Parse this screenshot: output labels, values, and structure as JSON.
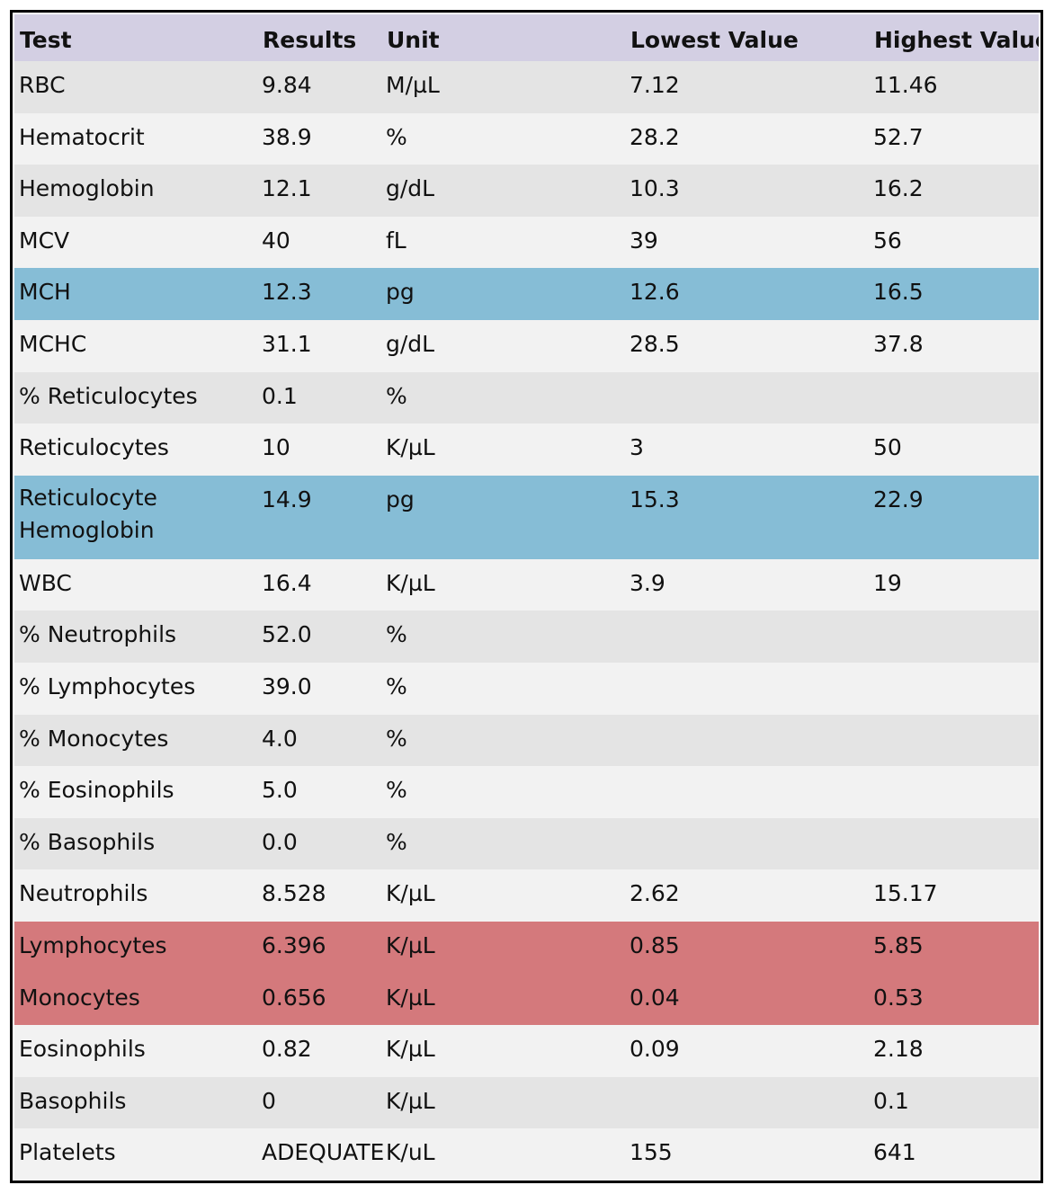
{
  "table": {
    "headers": [
      "Test",
      "Results",
      "Unit",
      "Lowest Value",
      "Highest Value"
    ],
    "colors": {
      "header": "#d3cfe3",
      "row_light": "#f2f2f2",
      "row_dark": "#e4e4e4",
      "highlight_blue": "#86bdd6",
      "highlight_red": "#d4797c"
    },
    "rows": [
      {
        "test": "RBC",
        "result": "9.84",
        "unit": "M/µL",
        "low": "7.12",
        "high": "11.46"
      },
      {
        "test": "Hematocrit",
        "result": "38.9",
        "unit": "%",
        "low": "28.2",
        "high": "52.7"
      },
      {
        "test": "Hemoglobin",
        "result": "12.1",
        "unit": "g/dL",
        "low": "10.3",
        "high": "16.2"
      },
      {
        "test": "MCV",
        "result": "40",
        "unit": "fL",
        "low": "39",
        "high": "56"
      },
      {
        "test": "MCH",
        "result": "12.3",
        "unit": "pg",
        "low": "12.6",
        "high": "16.5"
      },
      {
        "test": "MCHC",
        "result": "31.1",
        "unit": "g/dL",
        "low": "28.5",
        "high": "37.8"
      },
      {
        "test": "% Reticulocytes",
        "result": "0.1",
        "unit": "%",
        "low": "",
        "high": ""
      },
      {
        "test": "Reticulocytes",
        "result": "10",
        "unit": "K/µL",
        "low": "3",
        "high": "50"
      },
      {
        "test": "Reticulocyte Hemoglobin",
        "result": "14.9",
        "unit": "pg",
        "low": "15.3",
        "high": "22.9"
      },
      {
        "test": "WBC",
        "result": "16.4",
        "unit": "K/µL",
        "low": "3.9",
        "high": "19"
      },
      {
        "test": "% Neutrophils",
        "result": "52.0",
        "unit": "%",
        "low": "",
        "high": ""
      },
      {
        "test": "% Lymphocytes",
        "result": "39.0",
        "unit": "%",
        "low": "",
        "high": ""
      },
      {
        "test": "% Monocytes",
        "result": "4.0",
        "unit": "%",
        "low": "",
        "high": ""
      },
      {
        "test": "% Eosinophils",
        "result": "5.0",
        "unit": "%",
        "low": "",
        "high": ""
      },
      {
        "test": "% Basophils",
        "result": "0.0",
        "unit": "%",
        "low": "",
        "high": ""
      },
      {
        "test": "Neutrophils",
        "result": "8.528",
        "unit": "K/µL",
        "low": "2.62",
        "high": "15.17"
      },
      {
        "test": "Lymphocytes",
        "result": "6.396",
        "unit": "K/µL",
        "low": "0.85",
        "high": "5.85"
      },
      {
        "test": "Monocytes",
        "result": "0.656",
        "unit": "K/µL",
        "low": "0.04",
        "high": "0.53"
      },
      {
        "test": "Eosinophils",
        "result": "0.82",
        "unit": "K/µL",
        "low": "0.09",
        "high": "2.18"
      },
      {
        "test": "Basophils",
        "result": "0",
        "unit": "K/µL",
        "low": "",
        "high": "0.1"
      },
      {
        "test": "Platelets",
        "result": "ADEQUATE",
        "unit": "K/uL",
        "low": "155",
        "high": "641"
      }
    ]
  }
}
